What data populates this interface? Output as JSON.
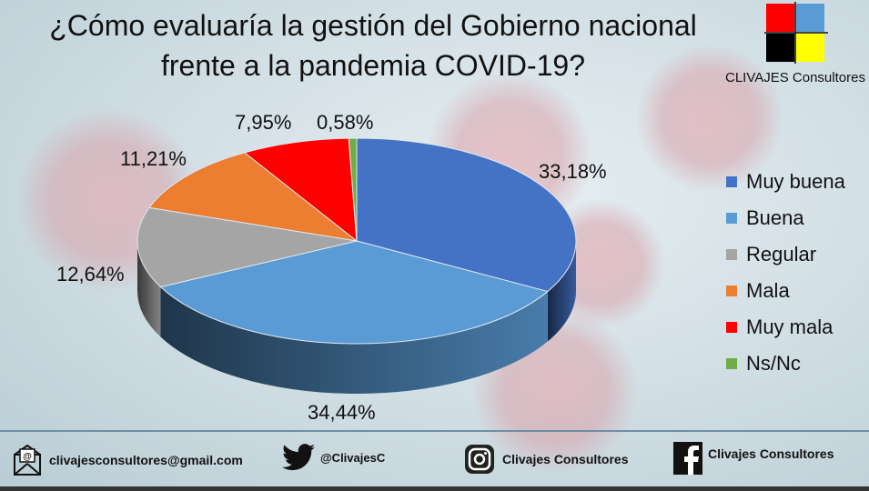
{
  "title_line1": "¿Cómo evaluaría la gestión del Gobierno nacional",
  "title_line2": "frente a la pandemia COVID-19?",
  "logo": {
    "text": "CLIVAJES Consultores",
    "colors": [
      "#ff0000",
      "#5b9bd5",
      "#000000",
      "#ffff00"
    ]
  },
  "chart_data": {
    "type": "pie",
    "title": "¿Cómo evaluaría la gestión del Gobierno nacional frente a la pandemia COVID-19?",
    "categories": [
      "Muy buena",
      "Buena",
      "Regular",
      "Mala",
      "Muy mala",
      "Ns/Nc"
    ],
    "values": [
      33.18,
      34.44,
      12.64,
      11.21,
      7.95,
      0.58
    ],
    "labels": [
      "33,18%",
      "34,44%",
      "12,64%",
      "11,21%",
      "7,95%",
      "0,58%"
    ],
    "colors": [
      "#4472c4",
      "#5b9bd5",
      "#a5a5a5",
      "#ed7d31",
      "#ff0000",
      "#70ad47"
    ],
    "legend_position": "right",
    "style": "3d"
  },
  "footer": {
    "email": "clivajesconsultores@gmail.com",
    "twitter": "@ClivajesC",
    "instagram": "Clivajes Consultores",
    "facebook": "Clivajes Consultores"
  }
}
